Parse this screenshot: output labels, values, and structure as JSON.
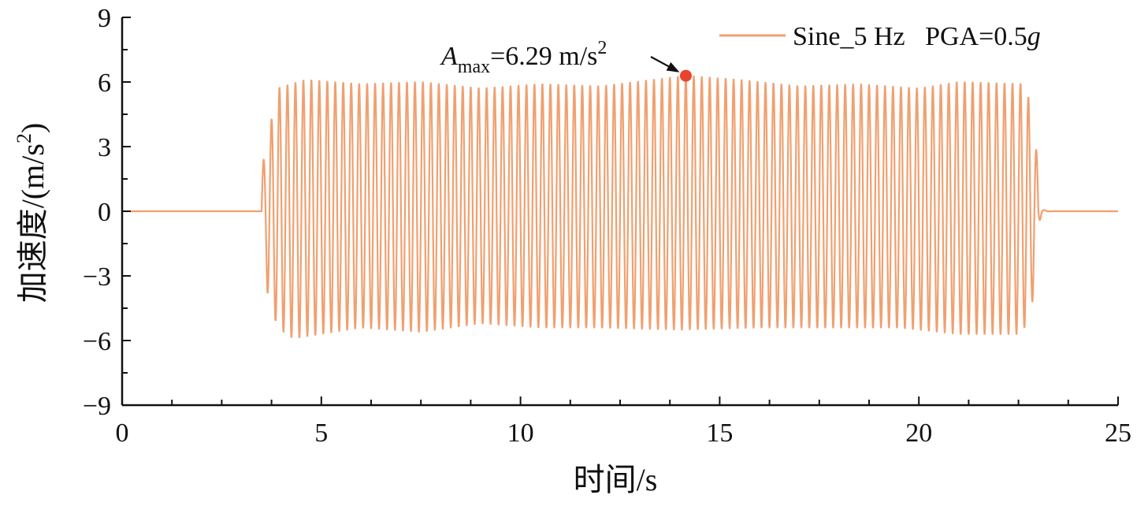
{
  "chart_data": {
    "type": "line",
    "xlabel": "时间/s",
    "ylabel_main": "加速度/(m/s",
    "ylabel_sup": "2",
    "ylabel_end": ")",
    "xlim": [
      0,
      25
    ],
    "ylim": [
      -9,
      9
    ],
    "xticks": [
      0,
      5,
      10,
      15,
      20,
      25
    ],
    "xtick_labels": [
      "0",
      "5",
      "10",
      "15",
      "20",
      "25"
    ],
    "yticks": [
      -9,
      -6,
      -3,
      0,
      3,
      6,
      9
    ],
    "ytick_labels": [
      "−9",
      "−6",
      "−3",
      "0",
      "3",
      "6",
      "9"
    ],
    "x_minor_step": 1.25,
    "y_minor_step": 1.5,
    "grid": false,
    "legend_position": "top-right",
    "series": [
      {
        "legend_main": "Sine_5 Hz   PGA=0.5",
        "legend_italic": "g",
        "color": "#f0a070",
        "signal": {
          "frequency_hz": 5,
          "quiet_before": [
            0,
            3.5
          ],
          "active": [
            3.5,
            23.1
          ],
          "quiet_after": [
            23.1,
            25
          ],
          "peak_envelope": [
            [
              3.5,
              1.9
            ],
            [
              3.9,
              5.7
            ],
            [
              4.6,
              6.1
            ],
            [
              6.0,
              5.9
            ],
            [
              7.5,
              6.0
            ],
            [
              9.0,
              5.7
            ],
            [
              10.5,
              5.9
            ],
            [
              12.0,
              5.8
            ],
            [
              14.15,
              6.29
            ],
            [
              15.5,
              6.1
            ],
            [
              17.0,
              5.8
            ],
            [
              18.5,
              5.9
            ],
            [
              20.0,
              5.7
            ],
            [
              21.0,
              6.0
            ],
            [
              22.7,
              5.9
            ],
            [
              23.0,
              2.2
            ],
            [
              23.1,
              0
            ]
          ],
          "trough_envelope": [
            [
              3.5,
              -0.2
            ],
            [
              3.65,
              -3.8
            ],
            [
              3.9,
              -5.4
            ],
            [
              4.3,
              -5.9
            ],
            [
              6.0,
              -5.4
            ],
            [
              7.5,
              -5.6
            ],
            [
              9.0,
              -5.2
            ],
            [
              10.5,
              -5.4
            ],
            [
              12.0,
              -5.4
            ],
            [
              14.0,
              -5.5
            ],
            [
              16.0,
              -5.4
            ],
            [
              18.0,
              -5.4
            ],
            [
              19.5,
              -5.4
            ],
            [
              21.0,
              -5.7
            ],
            [
              22.6,
              -5.7
            ],
            [
              22.9,
              -3.9
            ],
            [
              23.0,
              -0.7
            ],
            [
              23.1,
              0
            ]
          ]
        }
      }
    ],
    "annotation": {
      "label_italic": "A",
      "label_sub": "max",
      "label_value": "=6.29 m/s",
      "label_sup": "2",
      "point": [
        14.15,
        6.29
      ],
      "marker_color": "#e8432d"
    }
  }
}
